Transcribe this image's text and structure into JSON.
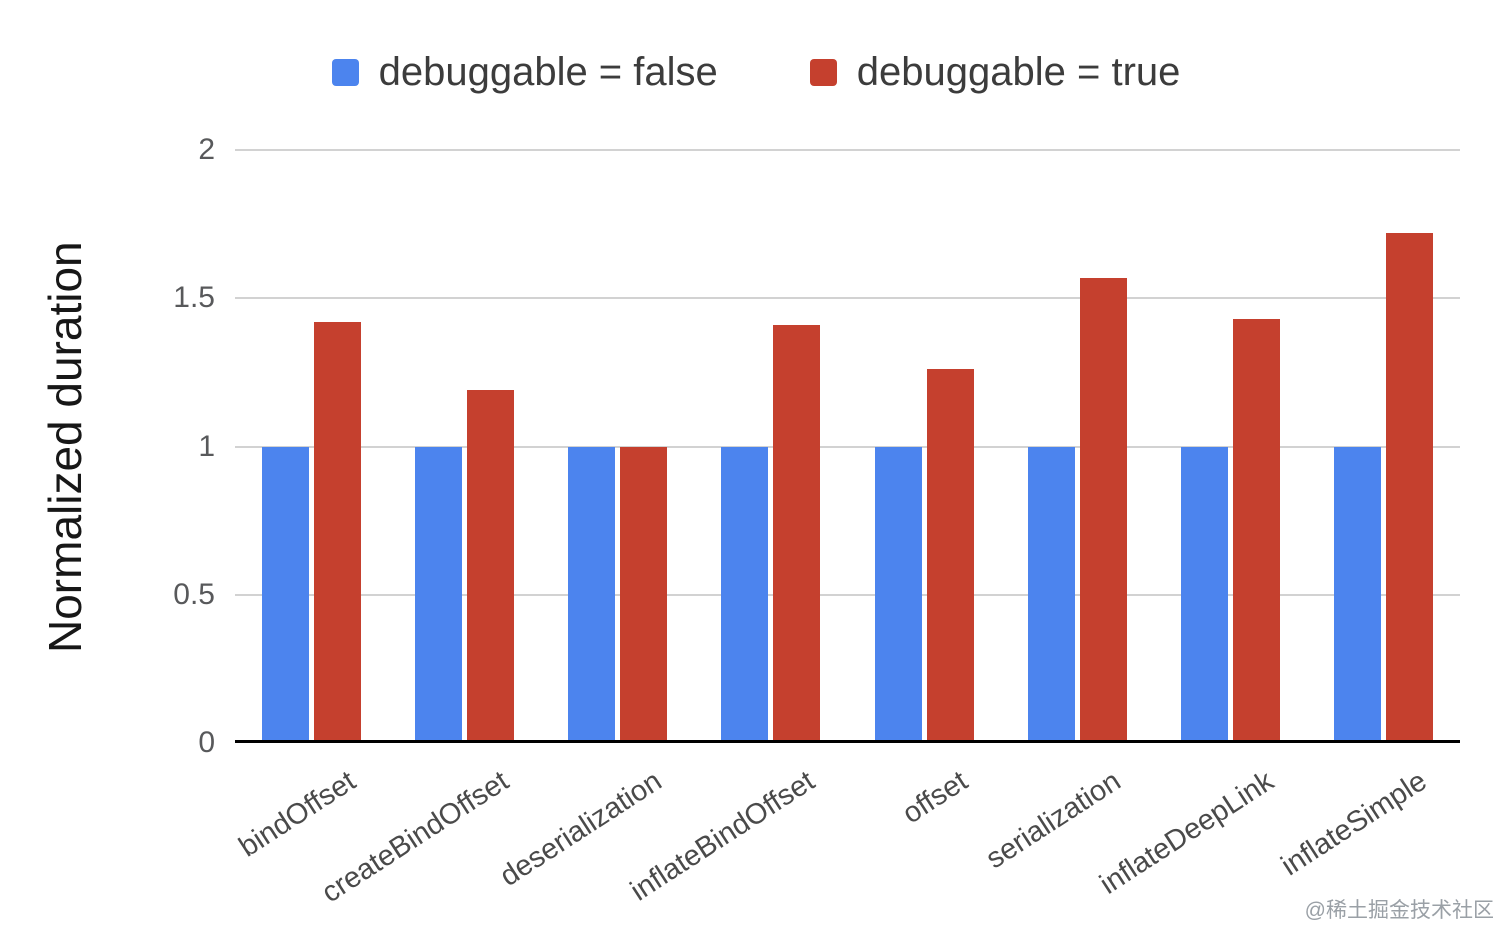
{
  "watermark": "@稀土掘金技术社区",
  "chart_data": {
    "type": "bar",
    "title": "",
    "xlabel": "",
    "ylabel": "Normalized duration",
    "categories": [
      "bindOffset",
      "createBindOffset",
      "deserialization",
      "inflateBindOffset",
      "offset",
      "serialization",
      "inflateDeepLink",
      "inflateSimple"
    ],
    "series": [
      {
        "name": "debuggable = false",
        "color": "#4c84ee",
        "values": [
          1.0,
          1.0,
          1.0,
          1.0,
          1.0,
          1.0,
          1.0,
          1.0
        ]
      },
      {
        "name": "debuggable = true",
        "color": "#c5402e",
        "values": [
          1.42,
          1.19,
          1.0,
          1.41,
          1.26,
          1.57,
          1.43,
          1.72
        ]
      }
    ],
    "ylim": [
      0,
      2
    ],
    "yticks": [
      0,
      0.5,
      1,
      1.5,
      2
    ],
    "grid": true,
    "legend_position": "top"
  }
}
